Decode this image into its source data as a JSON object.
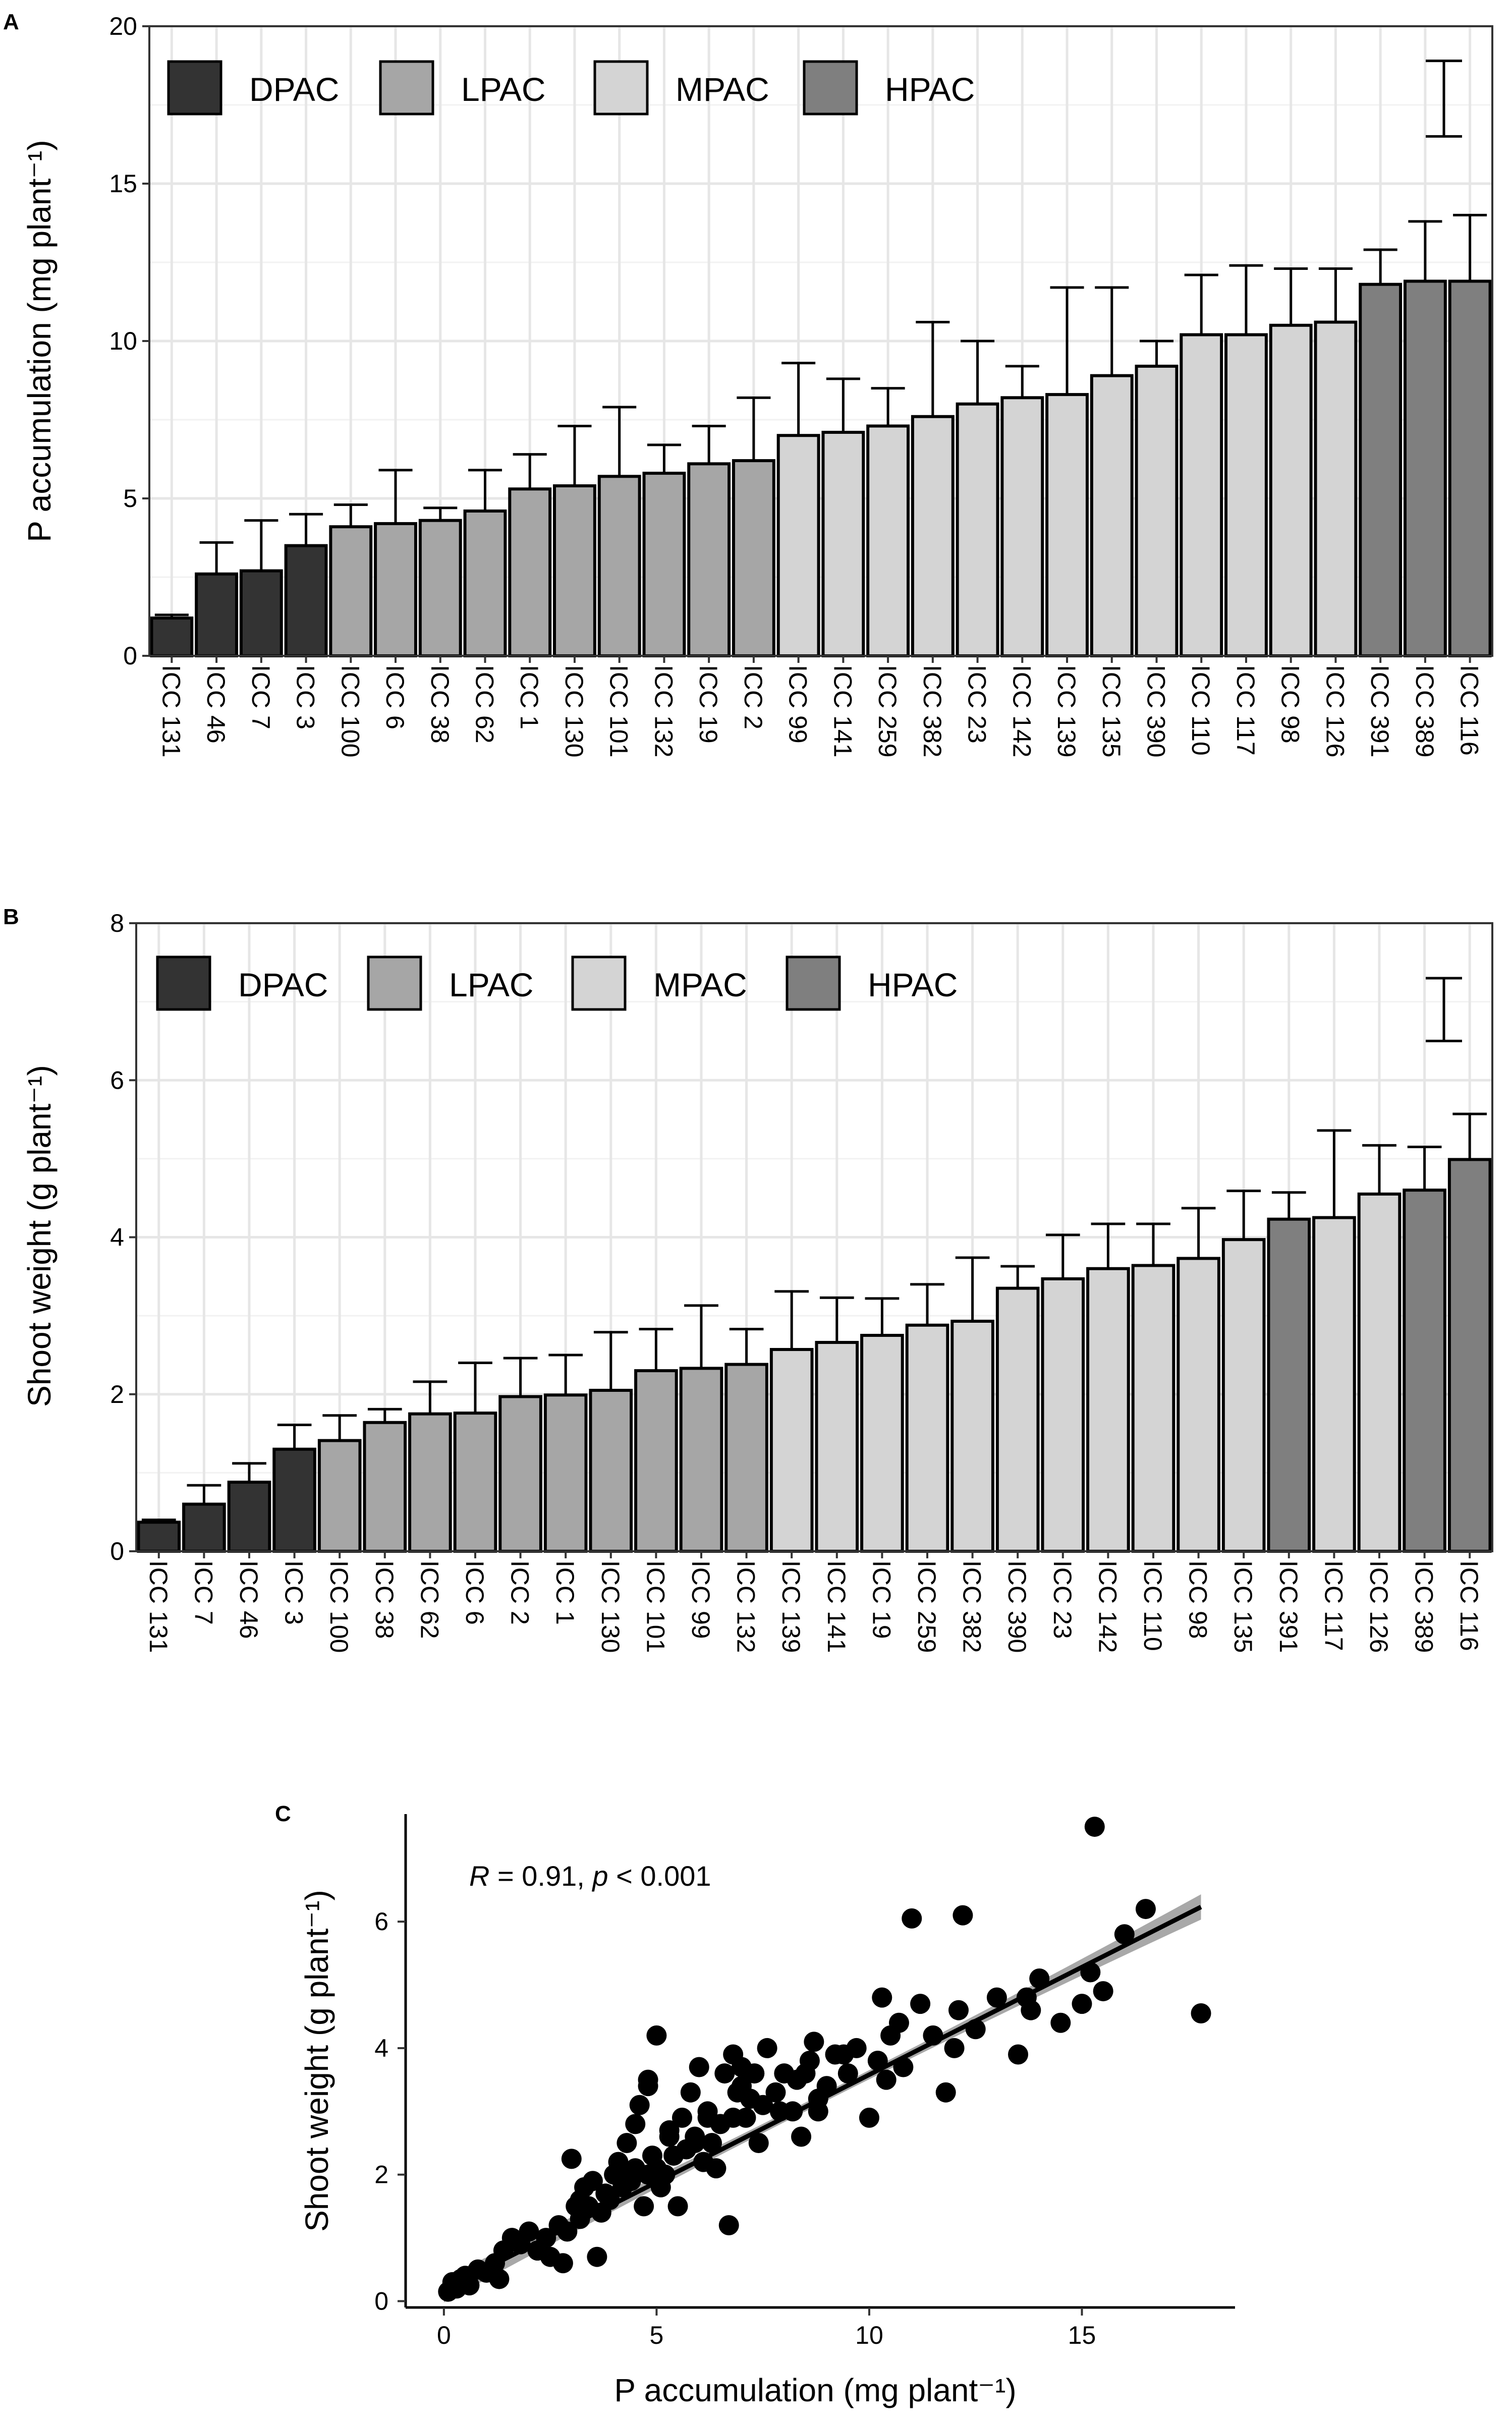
{
  "colors": {
    "DPAC": "#333333",
    "LPAC": "#a6a6a6",
    "MPAC": "#d4d4d4",
    "HPAC": "#7f7f7f"
  },
  "chart_data": [
    {
      "panel": "A",
      "type": "bar",
      "ylabel": "P accumulation (mg plant⁻¹)",
      "xlabel": "",
      "ylim": [
        0,
        20
      ],
      "yticks": [
        0,
        5,
        10,
        15,
        20
      ],
      "legend": [
        {
          "label": "DPAC",
          "group": "DPAC"
        },
        {
          "label": "LPAC",
          "group": "LPAC"
        },
        {
          "label": "MPAC",
          "group": "MPAC"
        },
        {
          "label": "HPAC",
          "group": "HPAC"
        }
      ],
      "lsd_bar": [
        16.5,
        18.9
      ],
      "categories": [
        "ICC 131",
        "ICC 46",
        "ICC 7",
        "ICC 3",
        "ICC 100",
        "ICC 6",
        "ICC 38",
        "ICC 62",
        "ICC 1",
        "ICC 130",
        "ICC 101",
        "ICC 132",
        "ICC 19",
        "ICC 2",
        "ICC 99",
        "ICC 141",
        "ICC 259",
        "ICC 382",
        "ICC 23",
        "ICC 142",
        "ICC 139",
        "ICC 135",
        "ICC 390",
        "ICC 110",
        "ICC 117",
        "ICC 98",
        "ICC 126",
        "ICC 391",
        "ICC 389",
        "ICC 116"
      ],
      "values": [
        1.2,
        2.6,
        2.7,
        3.5,
        4.1,
        4.2,
        4.3,
        4.6,
        5.3,
        5.4,
        5.7,
        5.8,
        6.1,
        6.2,
        7.0,
        7.1,
        7.3,
        7.6,
        8.0,
        8.2,
        8.3,
        8.9,
        9.2,
        10.2,
        10.2,
        10.5,
        10.6,
        11.8,
        11.9,
        11.9
      ],
      "err_top": [
        1.3,
        3.6,
        4.3,
        4.5,
        4.8,
        5.9,
        4.7,
        5.9,
        6.4,
        7.3,
        7.9,
        6.7,
        7.3,
        8.2,
        9.3,
        8.8,
        8.5,
        10.6,
        10.0,
        9.2,
        11.7,
        11.7,
        10.0,
        12.1,
        12.4,
        12.3,
        12.3,
        12.9,
        13.8,
        14.0
      ],
      "groups": [
        "DPAC",
        "DPAC",
        "DPAC",
        "DPAC",
        "LPAC",
        "LPAC",
        "LPAC",
        "LPAC",
        "LPAC",
        "LPAC",
        "LPAC",
        "LPAC",
        "LPAC",
        "LPAC",
        "MPAC",
        "MPAC",
        "MPAC",
        "MPAC",
        "MPAC",
        "MPAC",
        "MPAC",
        "MPAC",
        "MPAC",
        "MPAC",
        "MPAC",
        "MPAC",
        "MPAC",
        "HPAC",
        "HPAC",
        "HPAC"
      ]
    },
    {
      "panel": "B",
      "type": "bar",
      "ylabel": "Shoot weight (g plant⁻¹)",
      "xlabel": "",
      "ylim": [
        0,
        8
      ],
      "yticks": [
        0,
        2,
        4,
        6,
        8
      ],
      "legend": [
        {
          "label": "DPAC",
          "group": "DPAC"
        },
        {
          "label": "LPAC",
          "group": "LPAC"
        },
        {
          "label": "MPAC",
          "group": "MPAC"
        },
        {
          "label": "HPAC",
          "group": "HPAC"
        }
      ],
      "lsd_bar": [
        6.5,
        7.3
      ],
      "categories": [
        "ICC 131",
        "ICC 7",
        "ICC 46",
        "ICC 3",
        "ICC 100",
        "ICC 38",
        "ICC 62",
        "ICC 6",
        "ICC 2",
        "ICC 1",
        "ICC 130",
        "ICC 101",
        "ICC 99",
        "ICC 132",
        "ICC 139",
        "ICC 141",
        "ICC 19",
        "ICC 259",
        "ICC 382",
        "ICC 390",
        "ICC 23",
        "ICC 142",
        "ICC 110",
        "ICC 98",
        "ICC 135",
        "ICC 391",
        "ICC 117",
        "ICC 126",
        "ICC 389",
        "ICC 116"
      ],
      "values": [
        0.37,
        0.6,
        0.88,
        1.3,
        1.41,
        1.64,
        1.75,
        1.76,
        1.97,
        1.99,
        2.05,
        2.3,
        2.33,
        2.38,
        2.57,
        2.66,
        2.75,
        2.88,
        2.93,
        3.35,
        3.47,
        3.6,
        3.64,
        3.73,
        3.97,
        4.23,
        4.25,
        4.55,
        4.6,
        4.99
      ],
      "err_top": [
        0.4,
        0.84,
        1.12,
        1.61,
        1.73,
        1.81,
        2.16,
        2.4,
        2.46,
        2.5,
        2.79,
        2.83,
        3.13,
        2.83,
        3.31,
        3.23,
        3.22,
        3.4,
        3.74,
        3.63,
        4.03,
        4.17,
        4.17,
        4.37,
        4.59,
        4.57,
        5.36,
        5.17,
        5.15,
        5.57
      ],
      "groups": [
        "DPAC",
        "DPAC",
        "DPAC",
        "DPAC",
        "LPAC",
        "LPAC",
        "LPAC",
        "LPAC",
        "LPAC",
        "LPAC",
        "LPAC",
        "LPAC",
        "LPAC",
        "LPAC",
        "MPAC",
        "MPAC",
        "MPAC",
        "MPAC",
        "MPAC",
        "MPAC",
        "MPAC",
        "MPAC",
        "MPAC",
        "MPAC",
        "MPAC",
        "HPAC",
        "MPAC",
        "MPAC",
        "HPAC",
        "HPAC"
      ]
    },
    {
      "panel": "C",
      "type": "scatter",
      "xlabel": "P accumulation (mg plant⁻¹)",
      "ylabel": "Shoot weight (g plant⁻¹)",
      "xlim": [
        -0.9,
        18.6
      ],
      "ylim": [
        -0.1,
        7.7
      ],
      "xticks": [
        0,
        5,
        10,
        15
      ],
      "yticks": [
        0,
        2,
        4,
        6
      ],
      "annotation": {
        "r_label": "R",
        "r_value": " = 0.91, ",
        "p_label": "p",
        "p_value": " < 0.001"
      },
      "fit": {
        "intercept": 0.18,
        "slope": 0.34,
        "x_range": [
          0,
          17.8
        ],
        "band_halfwidth_ends": 0.2,
        "band_halfwidth_mid": 0.07
      },
      "x": [
        0.1,
        0.2,
        0.3,
        0.4,
        0.5,
        0.6,
        0.8,
        1.0,
        1.2,
        1.3,
        1.4,
        1.6,
        1.8,
        2.0,
        2.2,
        2.4,
        2.5,
        2.7,
        2.8,
        2.9,
        3.0,
        3.1,
        3.2,
        3.3,
        3.4,
        3.5,
        3.6,
        3.7,
        3.8,
        3.9,
        4.0,
        4.1,
        4.2,
        4.3,
        4.4,
        4.5,
        4.5,
        4.6,
        4.7,
        4.8,
        4.8,
        4.9,
        5.0,
        5.0,
        5.1,
        5.2,
        5.3,
        5.4,
        5.5,
        5.6,
        5.7,
        5.8,
        5.9,
        6.0,
        6.1,
        6.2,
        6.3,
        6.4,
        6.5,
        6.6,
        6.7,
        6.8,
        6.9,
        7.0,
        7.1,
        7.2,
        7.3,
        7.4,
        7.5,
        7.6,
        7.8,
        8.0,
        8.2,
        8.3,
        8.4,
        8.6,
        8.7,
        8.8,
        9.0,
        9.2,
        9.5,
        9.7,
        10.0,
        10.2,
        10.3,
        10.4,
        10.5,
        10.7,
        11.0,
        11.2,
        11.5,
        11.8,
        12.0,
        12.2,
        12.5,
        13.0,
        13.5,
        13.8,
        14.0,
        14.5,
        15.0,
        15.3,
        15.5,
        16.0,
        16.5,
        17.8,
        4.8,
        5.3,
        6.2,
        7.0,
        8.8,
        9.4,
        10.8,
        12.1,
        13.7,
        15.2,
        3.2,
        4.4,
        5.9,
        6.8,
        7.9,
        8.5
      ],
      "y": [
        0.15,
        0.3,
        0.2,
        0.35,
        0.4,
        0.25,
        0.5,
        0.45,
        0.6,
        0.35,
        0.8,
        1.0,
        0.9,
        1.1,
        0.8,
        1.0,
        0.7,
        1.2,
        0.6,
        1.1,
        2.25,
        1.5,
        1.3,
        1.8,
        1.5,
        1.9,
        0.7,
        1.4,
        1.7,
        1.6,
        2.0,
        2.2,
        1.8,
        2.5,
        1.9,
        2.1,
        2.8,
        3.1,
        1.5,
        3.5,
        2.0,
        2.3,
        2.1,
        4.2,
        1.8,
        2.0,
        2.6,
        2.3,
        1.5,
        2.9,
        2.4,
        3.3,
        2.6,
        3.7,
        2.2,
        3.0,
        2.5,
        2.1,
        2.8,
        3.6,
        1.2,
        3.9,
        3.3,
        3.7,
        2.9,
        3.2,
        3.6,
        2.5,
        3.1,
        4.0,
        3.3,
        3.6,
        3.0,
        3.5,
        2.6,
        3.8,
        4.1,
        3.0,
        3.4,
        3.9,
        3.6,
        4.0,
        2.9,
        3.8,
        4.8,
        3.5,
        4.2,
        4.4,
        6.05,
        4.7,
        4.2,
        3.3,
        4.0,
        6.1,
        4.3,
        4.8,
        3.9,
        4.6,
        5.1,
        4.4,
        4.7,
        7.5,
        4.9,
        5.8,
        6.2,
        4.55,
        3.4,
        2.7,
        2.9,
        3.4,
        3.2,
        3.9,
        3.7,
        4.6,
        4.8,
        5.2,
        1.6,
        2.0,
        2.5,
        2.9,
        3.0,
        3.6
      ]
    }
  ]
}
